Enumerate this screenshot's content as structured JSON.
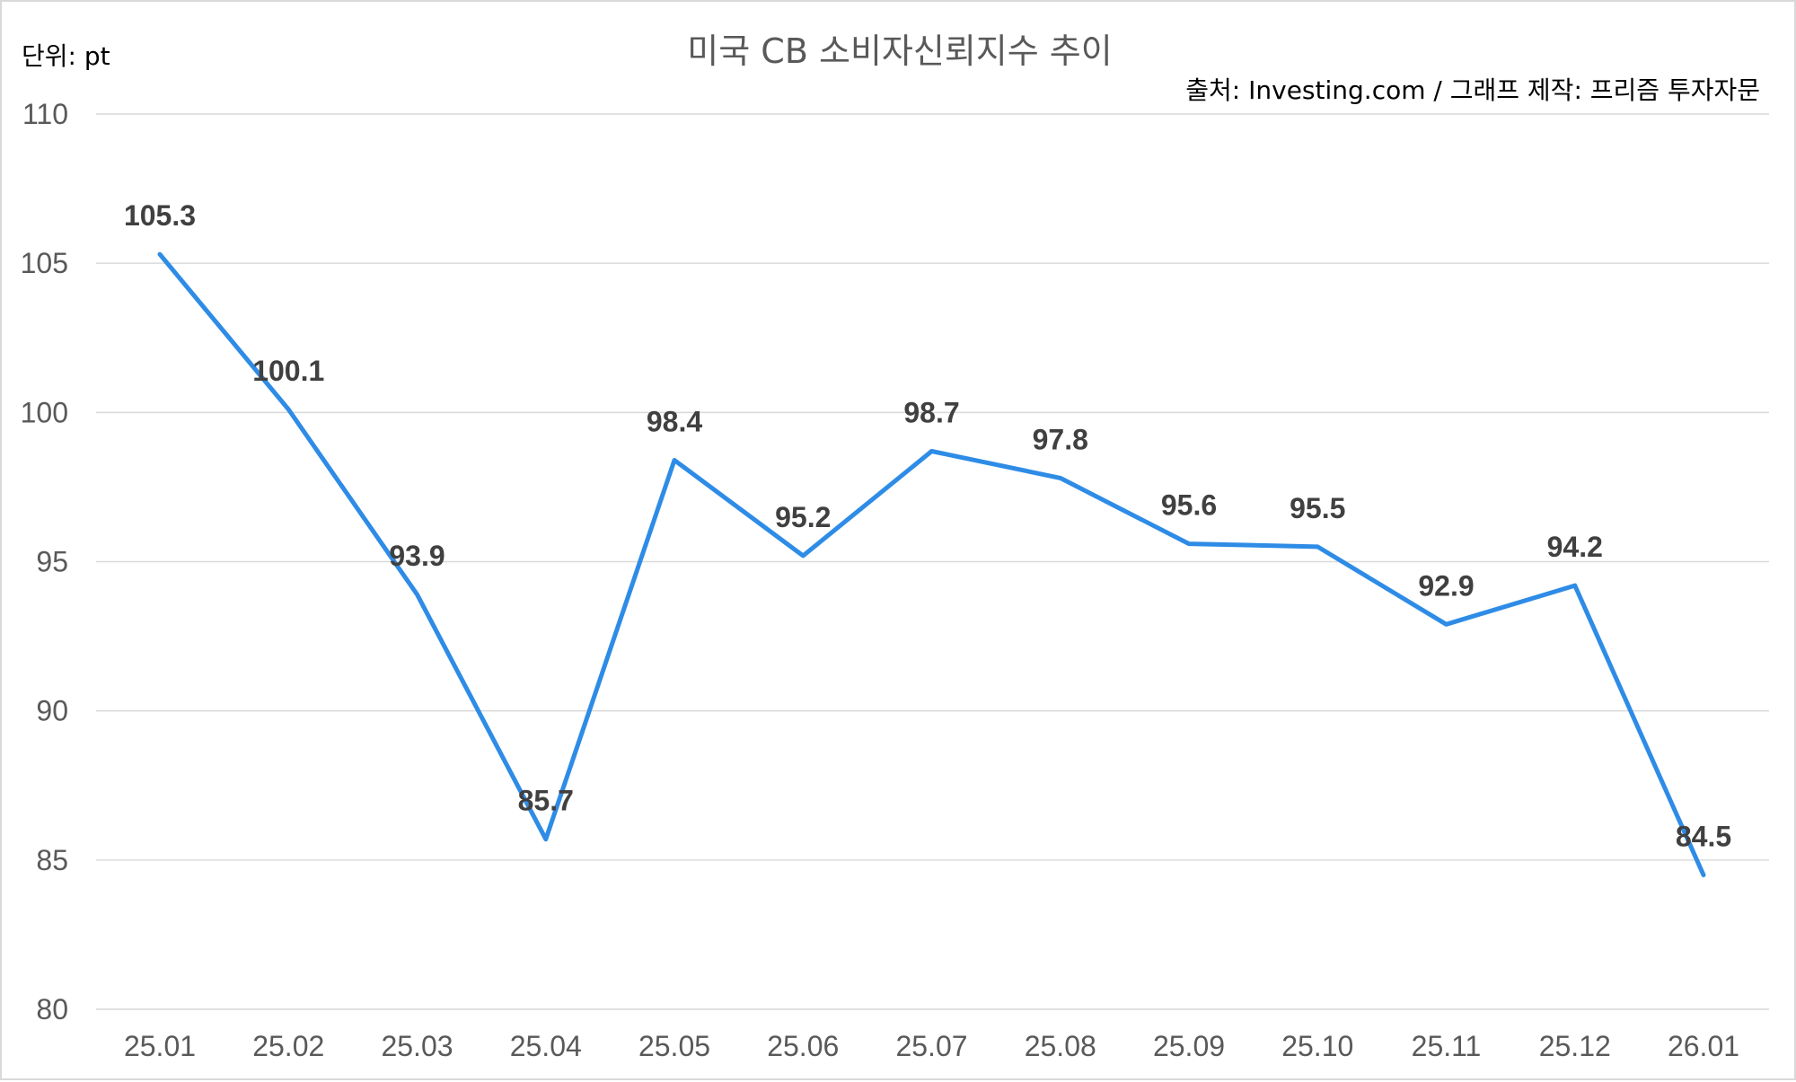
{
  "chart_data": {
    "type": "line",
    "title": "미국 CB 소비자신뢰지수 추이",
    "unit_label": "단위: pt",
    "source": "출처: Investing.com / 그래프 제작: 프리즘 투자자문",
    "categories": [
      "25.01",
      "25.02",
      "25.03",
      "25.04",
      "25.05",
      "25.06",
      "25.07",
      "25.08",
      "25.09",
      "25.10",
      "25.11",
      "25.12",
      "26.01"
    ],
    "series": [
      {
        "values": [
          105.3,
          100.1,
          93.9,
          85.7,
          98.4,
          95.2,
          98.7,
          97.8,
          95.6,
          95.5,
          92.9,
          94.2,
          84.5
        ],
        "color": "#2e8ce6"
      }
    ],
    "ylim": [
      80,
      110
    ],
    "yticks": [
      80,
      85,
      90,
      95,
      100,
      105,
      110
    ],
    "grid": true,
    "legend": "none",
    "data_labels": true
  }
}
